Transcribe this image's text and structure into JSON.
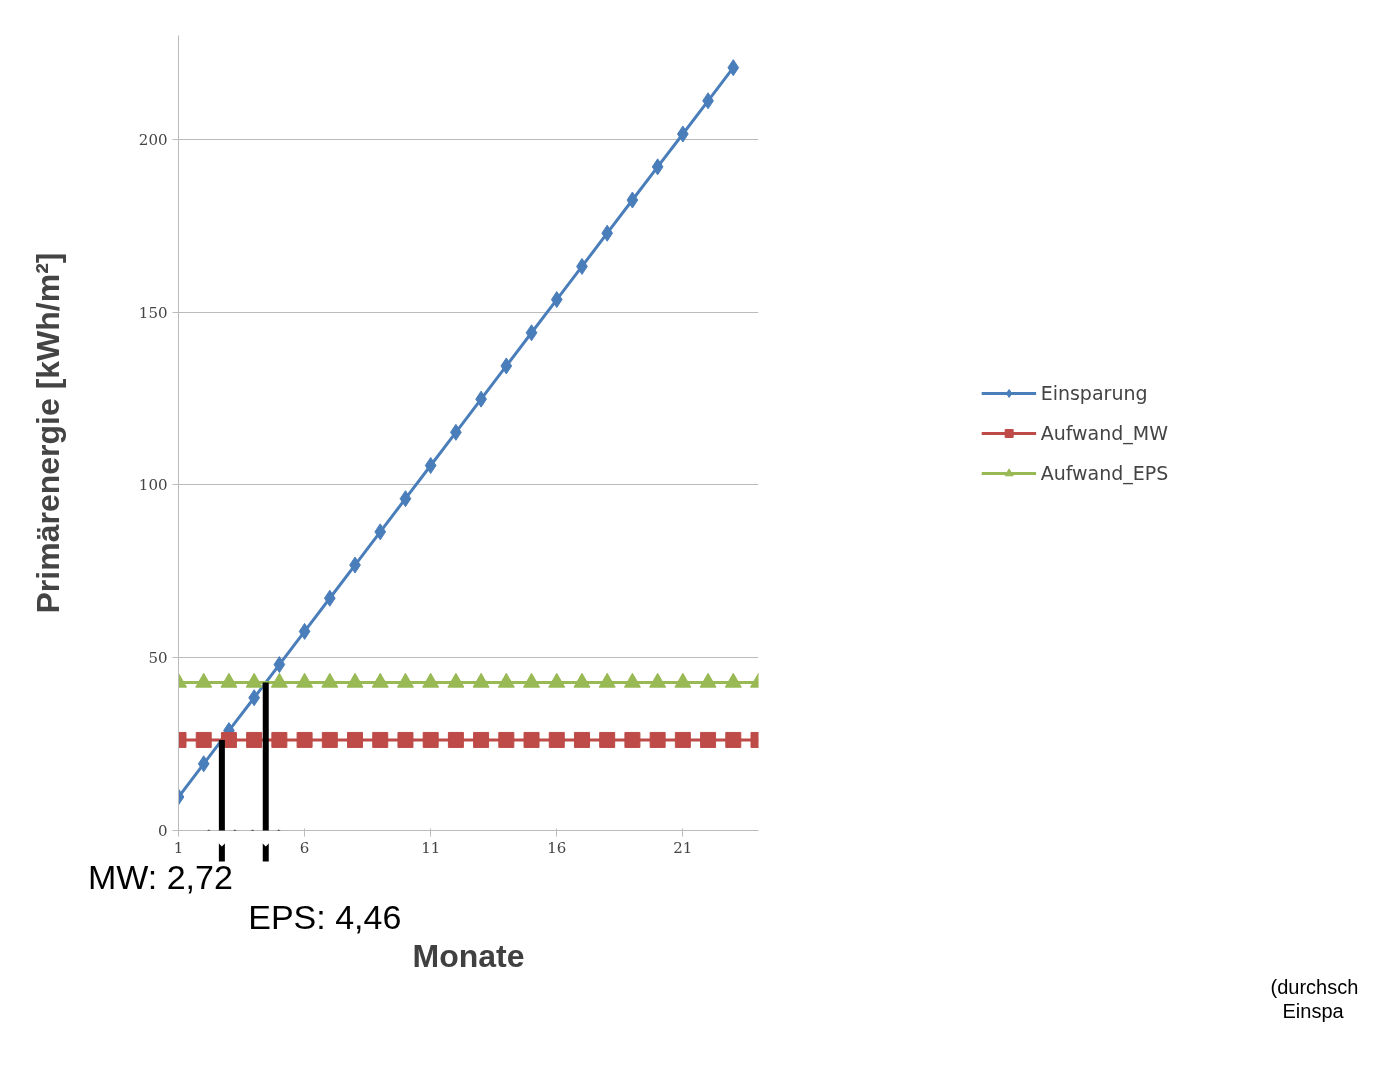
{
  "chart_data": {
    "type": "line",
    "ylabel": "Primärenergie [kWh/m²]",
    "xlabel": "Monate",
    "x": [
      1,
      2,
      3,
      4,
      5,
      6,
      7,
      8,
      9,
      10,
      11,
      12,
      13,
      14,
      15,
      16,
      17,
      18,
      19,
      20,
      21,
      22,
      23,
      24
    ],
    "series": [
      {
        "name": "Einsparung",
        "color": "#4a7ebb",
        "marker": "diamond",
        "values": [
          9.7,
          19.3,
          28.9,
          38.4,
          48.0,
          57.6,
          67.2,
          76.8,
          86.4,
          96.0,
          105.6,
          115.2,
          124.8,
          134.4,
          144.0,
          153.6,
          163.2,
          172.8,
          182.4,
          192.0,
          201.5,
          211.1,
          220.7,
          null
        ]
      },
      {
        "name": "Aufwand_MW",
        "color": "#be4b48",
        "marker": "square",
        "values": [
          26.2,
          26.2,
          26.2,
          26.2,
          26.2,
          26.2,
          26.2,
          26.2,
          26.2,
          26.2,
          26.2,
          26.2,
          26.2,
          26.2,
          26.2,
          26.2,
          26.2,
          26.2,
          26.2,
          26.2,
          26.2,
          26.2,
          26.2,
          26.2
        ]
      },
      {
        "name": "Aufwand_EPS",
        "color": "#98b954",
        "marker": "triangle",
        "values": [
          42.8,
          42.8,
          42.8,
          42.8,
          42.8,
          42.8,
          42.8,
          42.8,
          42.8,
          42.8,
          42.8,
          42.8,
          42.8,
          42.8,
          42.8,
          42.8,
          42.8,
          42.8,
          42.8,
          42.8,
          42.8,
          42.8,
          42.8,
          42.8
        ]
      }
    ],
    "xlim": [
      1,
      24
    ],
    "xticks": [
      1,
      6,
      11,
      16,
      21
    ],
    "ylim": [
      0,
      230
    ],
    "yticks": [
      0,
      50,
      100,
      150,
      200
    ],
    "grid": "y",
    "legend": "right",
    "line_style": "solid",
    "annotations": [
      {
        "text": "MW: 2,72",
        "x": 2.72,
        "y": 26.2
      },
      {
        "text": "EPS: 4,46",
        "x": 4.46,
        "y": 42.8
      },
      "(durchsch",
      "Einspa"
    ]
  }
}
